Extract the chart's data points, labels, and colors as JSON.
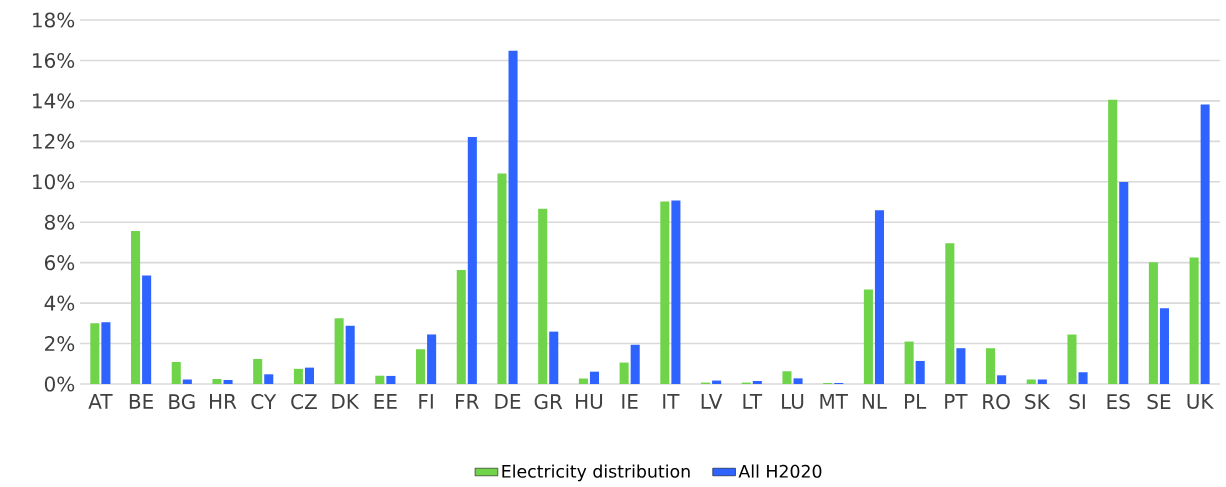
{
  "chart_data": {
    "type": "bar",
    "categories": [
      "AT",
      "BE",
      "BG",
      "HR",
      "CY",
      "CZ",
      "DK",
      "EE",
      "FI",
      "FR",
      "DE",
      "GR",
      "HU",
      "IE",
      "IT",
      "LV",
      "LT",
      "LU",
      "MT",
      "NL",
      "PL",
      "PT",
      "RO",
      "SK",
      "SI",
      "ES",
      "SE",
      "UK"
    ],
    "series": [
      {
        "name": "Electricity distribution",
        "color": "#70d44b",
        "values": [
          3.0,
          7.56,
          1.09,
          0.25,
          1.24,
          0.75,
          3.25,
          0.41,
          1.72,
          5.64,
          10.41,
          8.67,
          0.27,
          1.06,
          9.03,
          0.07,
          0.07,
          0.63,
          0.05,
          4.67,
          2.1,
          6.96,
          1.77,
          0.22,
          2.45,
          14.06,
          6.02,
          6.25
        ]
      },
      {
        "name": "All H2020",
        "color": "#2e63ff",
        "values": [
          3.05,
          5.37,
          0.22,
          0.2,
          0.48,
          0.81,
          2.88,
          0.4,
          2.45,
          12.22,
          16.48,
          2.59,
          0.61,
          1.94,
          9.08,
          0.17,
          0.15,
          0.28,
          0.05,
          8.59,
          1.14,
          1.77,
          0.43,
          0.22,
          0.58,
          9.99,
          3.75,
          13.82
        ]
      }
    ],
    "ylim": [
      0,
      18
    ],
    "yticks": [
      {
        "value": 0,
        "label": "0%"
      },
      {
        "value": 2,
        "label": "2%"
      },
      {
        "value": 4,
        "label": "4%"
      },
      {
        "value": 6,
        "label": "6%"
      },
      {
        "value": 8,
        "label": "8%"
      },
      {
        "value": 10,
        "label": "10%"
      },
      {
        "value": 12,
        "label": "12%"
      },
      {
        "value": 14,
        "label": "14%"
      },
      {
        "value": 16,
        "label": "16%"
      },
      {
        "value": 18,
        "label": "18%"
      }
    ],
    "grid": "y",
    "legend": "bottom"
  }
}
